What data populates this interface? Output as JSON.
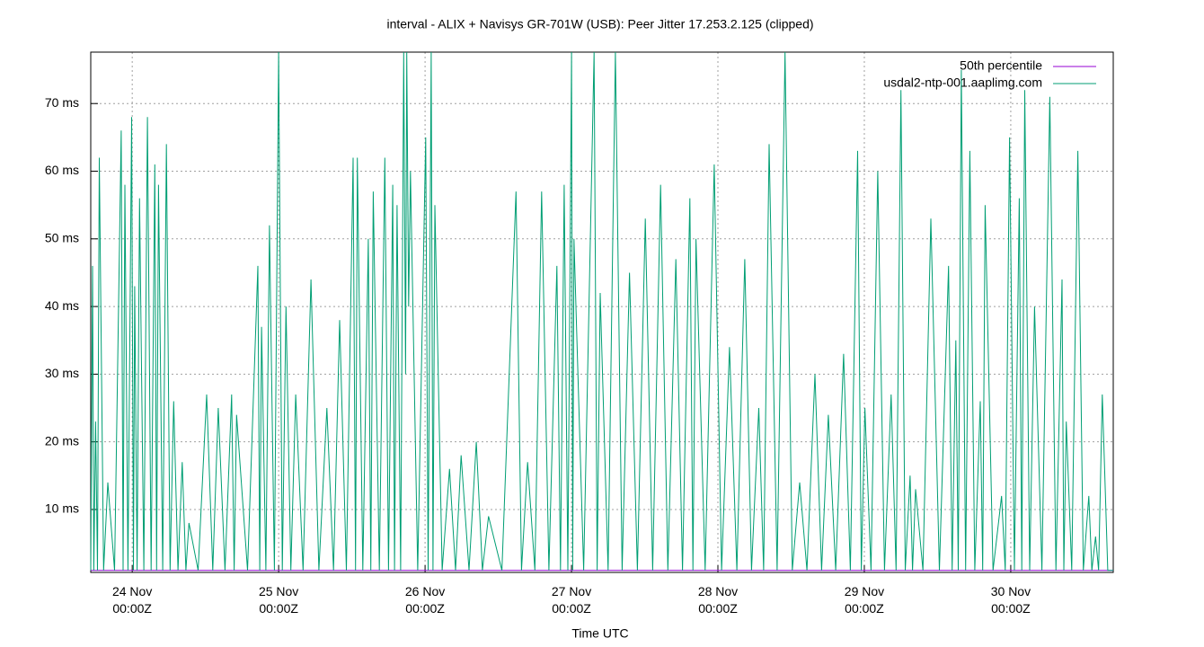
{
  "chart_data": {
    "type": "line",
    "title": "interval - ALIX + Navisys GR-701W (USB): Peer Jitter 17.253.2.125 (clipped)",
    "xlabel": "Time UTC",
    "xlim": [
      -6.8,
      160.8
    ],
    "xticks": [
      {
        "value": 0,
        "label": "24 Nov\n00:00Z"
      },
      {
        "value": 24,
        "label": "25 Nov\n00:00Z"
      },
      {
        "value": 48,
        "label": "26 Nov\n00:00Z"
      },
      {
        "value": 72,
        "label": "27 Nov\n00:00Z"
      },
      {
        "value": 96,
        "label": "28 Nov\n00:00Z"
      },
      {
        "value": 120,
        "label": "29 Nov\n00:00Z"
      },
      {
        "value": 144,
        "label": "30 Nov\n00:00Z"
      }
    ],
    "ylim": [
      0.7,
      77.6
    ],
    "yticks": [
      {
        "value": 10,
        "label": "10 ms"
      },
      {
        "value": 20,
        "label": "20 ms"
      },
      {
        "value": 30,
        "label": "30 ms"
      },
      {
        "value": 40,
        "label": "40 ms"
      },
      {
        "value": 50,
        "label": "50 ms"
      },
      {
        "value": 60,
        "label": "60 ms"
      },
      {
        "value": 70,
        "label": "70 ms"
      }
    ],
    "grid": true,
    "legend": "top-right",
    "series": [
      {
        "name": "50th percentile",
        "color": "#9400d3",
        "x": [
          -6.8,
          160.8
        ],
        "values": [
          1,
          1
        ]
      },
      {
        "name": "usdal2-ntp-001.aaplimg.com",
        "color": "#009e73",
        "x": [
          -6.8,
          -6.5,
          -6.3,
          -6.0,
          -5.7,
          -5.4,
          -4.7,
          -4.0,
          -2.9,
          -1.8,
          -1.5,
          -1.2,
          -0.7,
          -0.1,
          0.2,
          0.4,
          0.8,
          1.2,
          1.9,
          2.5,
          3.1,
          3.7,
          4.0,
          4.3,
          5.0,
          5.6,
          6.2,
          6.8,
          7.5,
          8.2,
          8.8,
          9.3,
          10.8,
          12.2,
          13.2,
          14.1,
          15.2,
          16.3,
          16.7,
          17.1,
          18.9,
          20.6,
          20.9,
          21.2,
          21.9,
          22.5,
          23.3,
          24.0,
          24.6,
          25.2,
          26.0,
          26.8,
          28.0,
          29.3,
          30.6,
          31.9,
          33.0,
          34.0,
          35.1,
          36.2,
          36.6,
          36.9,
          37.8,
          38.7,
          39.1,
          39.5,
          40.5,
          41.4,
          42.0,
          42.7,
          43.0,
          43.4,
          44.0,
          44.5,
          44.8,
          45.0,
          45.3,
          45.6,
          46.8,
          48.1,
          48.5,
          49.0,
          49.3,
          49.6,
          50.8,
          52.0,
          53.0,
          53.9,
          55.2,
          56.4,
          57.4,
          58.4,
          60.6,
          62.9,
          63.8,
          64.8,
          66.0,
          67.1,
          68.3,
          69.6,
          70.2,
          70.8,
          71.4,
          72.0,
          72.2,
          72.4,
          74.0,
          75.7,
          76.2,
          76.7,
          78.0,
          79.2,
          80.3,
          81.5,
          82.8,
          84.1,
          85.3,
          86.6,
          87.8,
          89.1,
          90.2,
          91.4,
          91.9,
          92.4,
          93.9,
          95.4,
          96.6,
          97.9,
          99.1,
          100.4,
          101.5,
          102.7,
          103.5,
          104.4,
          105.7,
          107.0,
          108.2,
          109.4,
          110.6,
          111.9,
          113.0,
          114.1,
          115.3,
          116.6,
          117.7,
          118.9,
          119.5,
          120.1,
          121.1,
          122.2,
          123.3,
          124.4,
          125.2,
          126.0,
          126.7,
          127.5,
          127.9,
          128.4,
          129.6,
          130.9,
          132.3,
          133.8,
          134.4,
          135.0,
          135.4,
          135.9,
          136.6,
          137.3,
          138.1,
          139.0,
          139.4,
          139.8,
          141.1,
          142.5,
          143.1,
          143.8,
          144.6,
          145.4,
          145.8,
          146.3,
          147.1,
          147.9,
          149.1,
          150.4,
          151.4,
          152.4,
          152.7,
          153.1,
          154.0,
          155.0,
          155.9,
          156.8,
          157.3,
          157.9,
          158.4,
          159.0,
          159.9,
          160.8
        ],
        "values": [
          1,
          46,
          1,
          23,
          1,
          62,
          1,
          14,
          1,
          66,
          1,
          58,
          1,
          68,
          1,
          43,
          1,
          56,
          1,
          68,
          1,
          61,
          1,
          58,
          1,
          64,
          1,
          26,
          1,
          17,
          1,
          8,
          1,
          27,
          1,
          25,
          1,
          27,
          1,
          24,
          1,
          46,
          1,
          37,
          1,
          52,
          1,
          77.6,
          1,
          40,
          1,
          27,
          1,
          44,
          1,
          25,
          1,
          38,
          1,
          62,
          1,
          62,
          1,
          50,
          1,
          57,
          1,
          62,
          1,
          58,
          1,
          55,
          1,
          77.6,
          30,
          77.6,
          40,
          60,
          1,
          65,
          1,
          77.6,
          1,
          55,
          1,
          16,
          1,
          18,
          1,
          20,
          1,
          9,
          1,
          57,
          1,
          17,
          1,
          57,
          1,
          46,
          1,
          58,
          1,
          77.6,
          1,
          50,
          1,
          77.6,
          1,
          42,
          1,
          77.6,
          1,
          45,
          1,
          53,
          1,
          58,
          1,
          47,
          1,
          56,
          1,
          50,
          1,
          61,
          1,
          34,
          1,
          47,
          1,
          25,
          1,
          64,
          1,
          77.6,
          1,
          14,
          1,
          30,
          1,
          24,
          1,
          33,
          1,
          63,
          1,
          25,
          1,
          60,
          1,
          27,
          1,
          72,
          1,
          15,
          1,
          13,
          1,
          53,
          1,
          46,
          1,
          35,
          1,
          75,
          1,
          63,
          1,
          26,
          1,
          55,
          1,
          12,
          1,
          65,
          1,
          56,
          1,
          72,
          1,
          40,
          1,
          71,
          1,
          44,
          1,
          23,
          1,
          63,
          1,
          12,
          1,
          6,
          1,
          27,
          1,
          1
        ]
      }
    ]
  }
}
